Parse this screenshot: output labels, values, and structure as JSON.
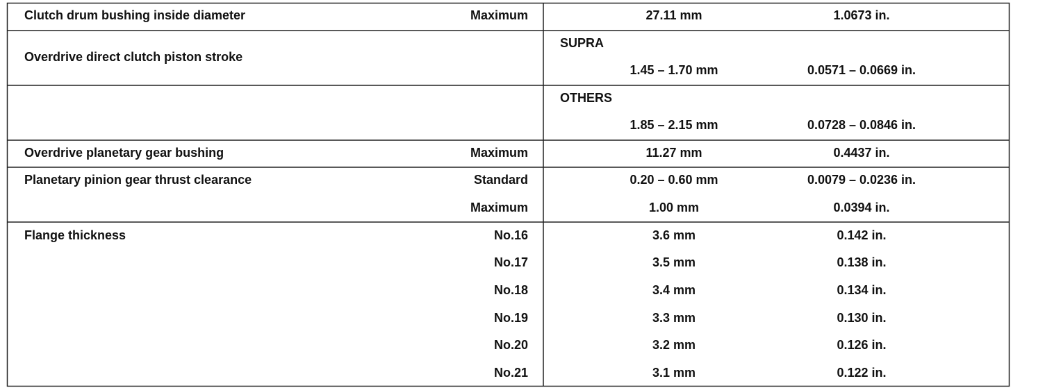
{
  "table": {
    "rows": [
      {
        "label": "Clutch drum bushing inside diameter",
        "qualifier": "Maximum",
        "metric": "27.11 mm",
        "imperial": "1.0673 in."
      },
      {
        "label": "Overdrive direct clutch piston stroke",
        "variant": "SUPRA",
        "metric": "1.45 – 1.70 mm",
        "imperial": "0.0571 – 0.0669 in."
      },
      {
        "variant": "OTHERS",
        "metric": "1.85 – 2.15 mm",
        "imperial": "0.0728 – 0.0846 in."
      },
      {
        "label": "Overdrive planetary gear bushing",
        "qualifier": "Maximum",
        "metric": "11.27 mm",
        "imperial": "0.4437 in."
      },
      {
        "label": "Planetary pinion gear thrust clearance",
        "qualifier": "Standard",
        "metric": "0.20 – 0.60 mm",
        "imperial": "0.0079 – 0.0236 in."
      },
      {
        "qualifier": "Maximum",
        "metric": "1.00 mm",
        "imperial": "0.0394 in."
      },
      {
        "label": "Flange thickness",
        "qualifier": "No.16",
        "metric": "3.6 mm",
        "imperial": "0.142 in."
      },
      {
        "qualifier": "No.17",
        "metric": "3.5 mm",
        "imperial": "0.138 in."
      },
      {
        "qualifier": "No.18",
        "metric": "3.4 mm",
        "imperial": "0.134 in."
      },
      {
        "qualifier": "No.19",
        "metric": "3.3 mm",
        "imperial": "0.130 in."
      },
      {
        "qualifier": "No.20",
        "metric": "3.2 mm",
        "imperial": "0.126 in."
      },
      {
        "qualifier": "No.21",
        "metric": "3.1 mm",
        "imperial": "0.122 in."
      }
    ]
  }
}
